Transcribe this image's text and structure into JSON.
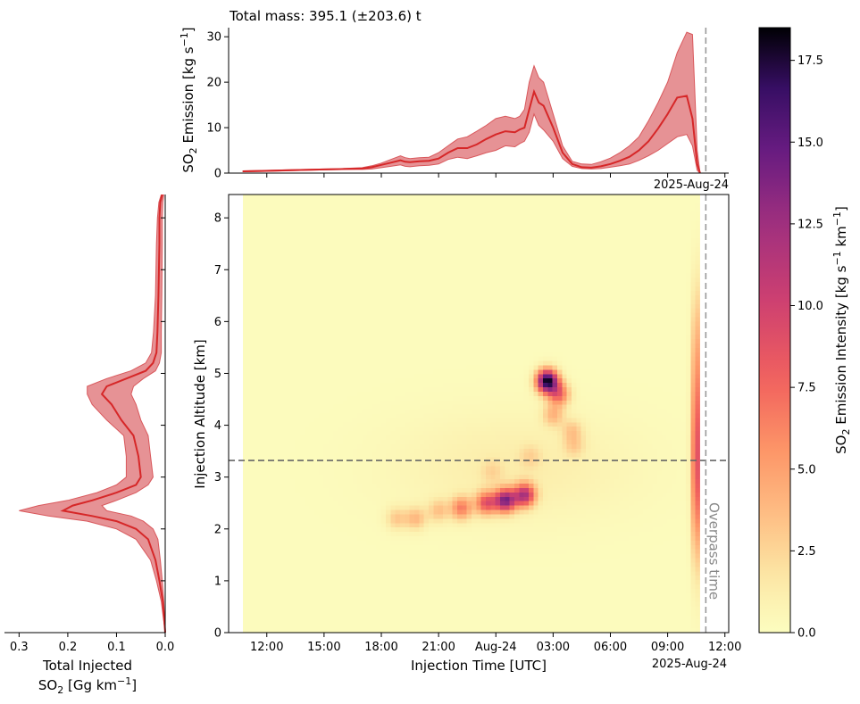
{
  "chart_data": [
    {
      "type": "area",
      "id": "top",
      "title": "Total mass: 395.1 (±203.6) t",
      "ylabel_main": "SO",
      "ylabel_sub": "2",
      "ylabel_rest": " Emission [kg s",
      "ylabel_sup": "−1",
      "ylabel_end": "]",
      "ylim": [
        0,
        32
      ],
      "yticks": [
        0,
        10,
        20,
        30
      ],
      "x_offset_label": "2025-Aug-24",
      "color": "#d62728",
      "band_color": "#e38689",
      "x": [
        10.75,
        12,
        13,
        14,
        15,
        16,
        17,
        17.5,
        18,
        18.5,
        19,
        19.25,
        19.5,
        20,
        20.5,
        21,
        21.5,
        22,
        22.5,
        23,
        23.5,
        24,
        24.5,
        25,
        25.25,
        25.5,
        25.75,
        26,
        26.25,
        26.5,
        27,
        27.5,
        28,
        28.5,
        29,
        29.5,
        30,
        30.5,
        31,
        31.5,
        32,
        32.5,
        33,
        33.5,
        34,
        34.3,
        34.55,
        34.7
      ],
      "mean": [
        0.4,
        0.5,
        0.6,
        0.7,
        0.8,
        0.9,
        1.0,
        1.3,
        1.8,
        2.3,
        2.8,
        2.5,
        2.4,
        2.6,
        2.7,
        3.2,
        4.5,
        5.5,
        5.5,
        6.3,
        7.5,
        8.5,
        9.2,
        9.0,
        9.6,
        10.0,
        14.0,
        17.9,
        15.5,
        14.8,
        10.0,
        4.5,
        2.0,
        1.3,
        1.2,
        1.5,
        2.0,
        2.7,
        3.6,
        5.0,
        7.0,
        9.8,
        13.0,
        16.6,
        17.0,
        12.0,
        2.0,
        0.0
      ],
      "upper": [
        0.5,
        0.6,
        0.7,
        0.8,
        0.9,
        1.0,
        1.2,
        1.6,
        2.2,
        3.0,
        3.8,
        3.4,
        3.2,
        3.4,
        3.5,
        4.5,
        6.0,
        7.5,
        8.0,
        9.2,
        10.5,
        12.0,
        12.5,
        12.0,
        12.5,
        14.0,
        20.0,
        23.6,
        21.0,
        20.0,
        13.0,
        6.0,
        2.6,
        2.0,
        1.9,
        2.5,
        3.3,
        4.5,
        6.0,
        8.0,
        11.5,
        15.5,
        20.0,
        26.5,
        31.0,
        30.5,
        5.0,
        0.0
      ],
      "lower": [
        0.3,
        0.4,
        0.5,
        0.6,
        0.7,
        0.8,
        0.8,
        0.9,
        1.2,
        1.5,
        1.8,
        1.5,
        1.4,
        1.6,
        1.7,
        2.0,
        3.0,
        3.5,
        3.2,
        3.8,
        4.5,
        5.0,
        6.0,
        5.8,
        6.5,
        7.0,
        9.0,
        13.0,
        10.5,
        9.5,
        7.0,
        3.2,
        1.5,
        1.0,
        0.9,
        1.0,
        1.3,
        1.6,
        2.0,
        2.8,
        3.8,
        5.0,
        6.5,
        8.0,
        8.5,
        6.0,
        0.6,
        0.0
      ]
    },
    {
      "type": "heatmap",
      "id": "main",
      "xlabel": "Injection Time [UTC]",
      "ylabel": "Injection Altitude [km]",
      "xlim": [
        10,
        36.2
      ],
      "ylim": [
        0,
        8.45
      ],
      "xticks": [
        {
          "v": 12,
          "t": "12:00"
        },
        {
          "v": 15,
          "t": "15:00"
        },
        {
          "v": 18,
          "t": "18:00"
        },
        {
          "v": 21,
          "t": "21:00"
        },
        {
          "v": 24,
          "t": "Aug-24"
        },
        {
          "v": 27,
          "t": "03:00"
        },
        {
          "v": 30,
          "t": "06:00"
        },
        {
          "v": 33,
          "t": "09:00"
        },
        {
          "v": 36,
          "t": "12:00"
        }
      ],
      "yticks": [
        0,
        1,
        2,
        3,
        4,
        5,
        6,
        7,
        8
      ],
      "x_offset_label": "2025-Aug-24",
      "data_x_range": [
        10.75,
        34.7
      ],
      "overpass_x": 35.0,
      "overpass_label": "Overpass time",
      "hline_y": 3.32,
      "blobs": [
        {
          "x": 26.7,
          "y": 4.85,
          "peak": 18.0
        },
        {
          "x": 27.3,
          "y": 4.6,
          "peak": 7.0
        },
        {
          "x": 27.0,
          "y": 4.2,
          "peak": 3.5
        },
        {
          "x": 28.0,
          "y": 3.9,
          "peak": 2.5
        },
        {
          "x": 28.1,
          "y": 3.6,
          "peak": 2.0
        },
        {
          "x": 24.5,
          "y": 2.55,
          "peak": 13.0
        },
        {
          "x": 25.5,
          "y": 2.65,
          "peak": 11.0
        },
        {
          "x": 23.5,
          "y": 2.5,
          "peak": 8.0
        },
        {
          "x": 22.2,
          "y": 2.4,
          "peak": 6.0
        },
        {
          "x": 21.0,
          "y": 2.35,
          "peak": 3.0
        },
        {
          "x": 19.8,
          "y": 2.2,
          "peak": 3.5
        },
        {
          "x": 18.8,
          "y": 2.2,
          "peak": 2.8
        },
        {
          "x": 23.8,
          "y": 3.1,
          "peak": 1.5
        },
        {
          "x": 25.8,
          "y": 3.4,
          "peak": 1.6
        },
        {
          "x": 34.5,
          "y": 3.8,
          "peak": 6.0
        },
        {
          "x": 34.5,
          "y": 2.5,
          "peak": 5.0
        },
        {
          "x": 34.5,
          "y": 5.5,
          "peak": 3.5
        }
      ]
    },
    {
      "type": "area",
      "id": "left",
      "xlabel_line1": "Total Injected",
      "xlabel_line2_main": "SO",
      "xlabel_line2_sub": "2",
      "xlabel_line2_rest": " [Gg km",
      "xlabel_line2_sup": "−1",
      "xlabel_line2_end": "]",
      "xlim": [
        0.33,
        0.0
      ],
      "xticks": [
        0.3,
        0.2,
        0.1,
        0.0
      ],
      "color": "#d62728",
      "band_color": "#e38689",
      "y": [
        0.0,
        0.6,
        1.0,
        1.4,
        1.8,
        2.0,
        2.15,
        2.25,
        2.35,
        2.45,
        2.55,
        2.7,
        2.85,
        3.0,
        3.4,
        3.8,
        4.1,
        4.4,
        4.6,
        4.75,
        4.9,
        5.05,
        5.2,
        5.4,
        5.8,
        6.5,
        7.5,
        8.0,
        8.3,
        8.45
      ],
      "mean": [
        0.0,
        0.005,
        0.012,
        0.02,
        0.035,
        0.06,
        0.1,
        0.15,
        0.21,
        0.19,
        0.15,
        0.1,
        0.06,
        0.05,
        0.055,
        0.065,
        0.09,
        0.11,
        0.13,
        0.12,
        0.08,
        0.04,
        0.025,
        0.018,
        0.016,
        0.014,
        0.012,
        0.012,
        0.01,
        0.006
      ],
      "upper": [
        0.0,
        0.008,
        0.018,
        0.03,
        0.06,
        0.1,
        0.16,
        0.24,
        0.3,
        0.26,
        0.2,
        0.14,
        0.1,
        0.08,
        0.08,
        0.085,
        0.12,
        0.15,
        0.16,
        0.16,
        0.12,
        0.07,
        0.04,
        0.028,
        0.024,
        0.02,
        0.018,
        0.016,
        0.013,
        0.008
      ],
      "lower": [
        0.0,
        0.003,
        0.006,
        0.01,
        0.015,
        0.025,
        0.045,
        0.07,
        0.12,
        0.13,
        0.1,
        0.06,
        0.035,
        0.025,
        0.03,
        0.035,
        0.05,
        0.06,
        0.07,
        0.065,
        0.045,
        0.02,
        0.012,
        0.008,
        0.008,
        0.007,
        0.006,
        0.006,
        0.005,
        0.003
      ]
    },
    {
      "type": "colorbar",
      "id": "cbar",
      "label_main": "SO",
      "label_sub": "2",
      "label_rest": " Emission Intensity [kg s",
      "label_sup1": "−1",
      "label_mid": " km",
      "label_sup2": "−1",
      "label_end": "]",
      "vmin": 0,
      "vmax": 18.5,
      "ticks": [
        "0.0",
        "2.5",
        "5.0",
        "7.5",
        "10.0",
        "12.5",
        "15.0",
        "17.5"
      ],
      "colormap": "magma_r"
    }
  ]
}
